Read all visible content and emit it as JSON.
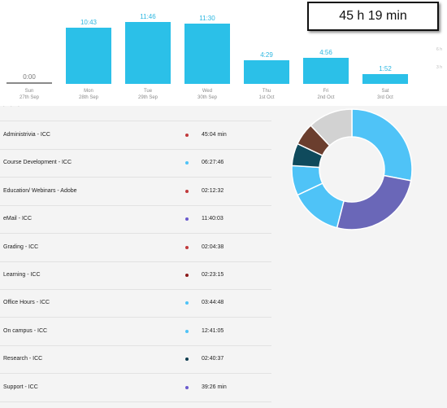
{
  "total": {
    "label": "45 h 19 min"
  },
  "chart_data": {
    "type": "bar",
    "categories": [
      "Sun",
      "Mon",
      "Tue",
      "Wed",
      "Thu",
      "Fri",
      "Sat"
    ],
    "dates": [
      "27th Sep",
      "28th Sep",
      "29th Sep",
      "30th Sep",
      "1st Oct",
      "2nd Oct",
      "3rd Oct"
    ],
    "value_labels": [
      "0:00",
      "10:43",
      "11:46",
      "11:30",
      "4:29",
      "4:56",
      "1:52"
    ],
    "values": [
      0,
      10.72,
      11.77,
      11.5,
      4.48,
      4.93,
      1.87
    ],
    "ylim": [
      0,
      12.7
    ],
    "axis_ticks": [
      "6 h",
      "3 h"
    ],
    "bar_color": "#2bc0e8",
    "zero_bar_color": "#8a8a8a"
  },
  "activities": [
    {
      "name": "Administrivia - ICC",
      "time": "45:04 min",
      "color": "#c0393b"
    },
    {
      "name": "Course Development - ICC",
      "time": "06:27:46",
      "color": "#4fc3f7"
    },
    {
      "name": "Education/ Webinars - Adobe",
      "time": "02:12:32",
      "color": "#c0393b"
    },
    {
      "name": "eMail - ICC",
      "time": "11:40:03",
      "color": "#6a5acd"
    },
    {
      "name": "Grading - ICC",
      "time": "02:04:38",
      "color": "#c0393b"
    },
    {
      "name": "Learning - ICC",
      "time": "02:23:15",
      "color": "#8b1a1a"
    },
    {
      "name": "Office Hours - ICC",
      "time": "03:44:48",
      "color": "#4fc3f7"
    },
    {
      "name": "On campus - ICC",
      "time": "12:41:05",
      "color": "#4fc3f7"
    },
    {
      "name": "Research - ICC",
      "time": "02:40:37",
      "color": "#0f3d4f"
    },
    {
      "name": "Support - ICC",
      "time": "39:26 min",
      "color": "#6a5acd"
    }
  ],
  "donut": {
    "slices": [
      {
        "value": 28,
        "color": "#4fc3f7"
      },
      {
        "value": 26,
        "color": "#6a67b8"
      },
      {
        "value": 14,
        "color": "#4fc3f7"
      },
      {
        "value": 8,
        "color": "#4fc3f7"
      },
      {
        "value": 6,
        "color": "#0f4a5c"
      },
      {
        "value": 6,
        "color": "#6b3e2e"
      },
      {
        "value": 12,
        "color": "#d2d2d2"
      }
    ]
  }
}
